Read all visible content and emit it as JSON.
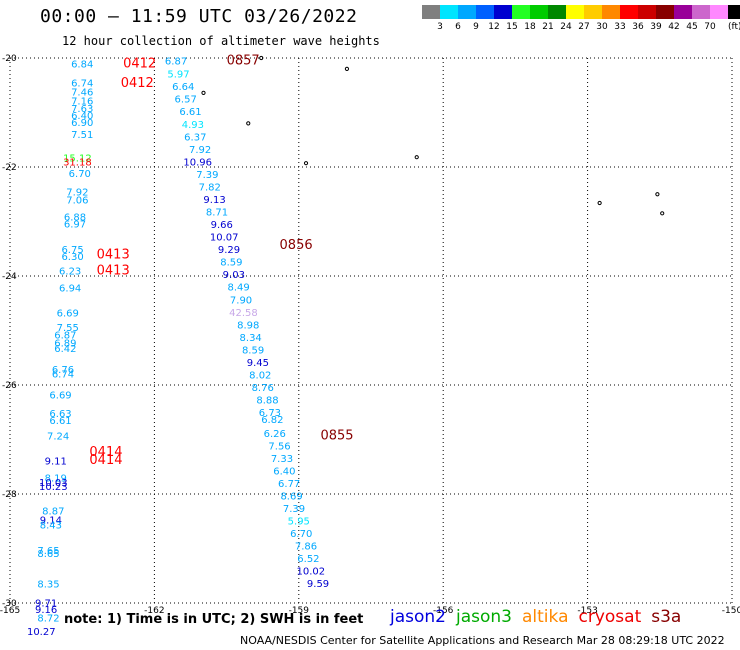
{
  "header": {
    "title": "00:00 – 11:59 UTC 03/26/2022",
    "subtitle": "12 hour collection of altimeter wave heights"
  },
  "colorbar": {
    "unit_label": "(ft)",
    "entries": [
      {
        "label": "",
        "color": "#7f7f7f"
      },
      {
        "label": "3",
        "color": "#00e5ff"
      },
      {
        "label": "6",
        "color": "#00a8ff"
      },
      {
        "label": "9",
        "color": "#0060ff"
      },
      {
        "label": "12",
        "color": "#0000d0"
      },
      {
        "label": "15",
        "color": "#22ff22"
      },
      {
        "label": "18",
        "color": "#00cc00"
      },
      {
        "label": "21",
        "color": "#008800"
      },
      {
        "label": "24",
        "color": "#ffff00"
      },
      {
        "label": "27",
        "color": "#ffcc00"
      },
      {
        "label": "30",
        "color": "#ff8800"
      },
      {
        "label": "33",
        "color": "#ff0000"
      },
      {
        "label": "36",
        "color": "#cc0000"
      },
      {
        "label": "39",
        "color": "#880000"
      },
      {
        "label": "42",
        "color": "#990099"
      },
      {
        "label": "45",
        "color": "#cc66cc"
      },
      {
        "label": "70",
        "color": "#ff88ff"
      },
      {
        "label": "",
        "color": "#000000"
      }
    ]
  },
  "map": {
    "lon_range": [
      -165,
      -150
    ],
    "lat_range": [
      -30,
      -20
    ],
    "x_ticks": [
      "-165",
      "-162",
      "-159",
      "-156",
      "-153",
      "-150"
    ],
    "y_ticks": [
      "-20",
      "-22",
      "-24",
      "-26",
      "-28",
      "-30"
    ],
    "islands": [
      {
        "lon": -159.78,
        "lat": -20.0
      },
      {
        "lon": -158.0,
        "lat": -20.2
      },
      {
        "lon": -160.98,
        "lat": -20.64
      },
      {
        "lon": -160.05,
        "lat": -21.2
      },
      {
        "lon": -158.85,
        "lat": -21.93
      },
      {
        "lon": -156.55,
        "lat": -21.82
      },
      {
        "lon": -152.75,
        "lat": -22.66
      },
      {
        "lon": -151.55,
        "lat": -22.5
      },
      {
        "lon": -151.45,
        "lat": -22.85
      }
    ]
  },
  "chart_data": {
    "type": "scatter",
    "passes": [
      {
        "time_label": "0412",
        "lon": -162.65,
        "lat": -20.17,
        "color": "#ff0000"
      },
      {
        "time_label": "0412",
        "lon": -162.7,
        "lat": -20.53,
        "color": "#ff0000"
      },
      {
        "time_label": "0857",
        "lon": -160.5,
        "lat": -20.12,
        "color": "#880000"
      },
      {
        "time_label": "0413",
        "lon": -163.2,
        "lat": -23.68,
        "color": "#ff0000"
      },
      {
        "time_label": "0413",
        "lon": -163.2,
        "lat": -23.97,
        "color": "#ff0000"
      },
      {
        "time_label": "0856",
        "lon": -159.4,
        "lat": -23.5,
        "color": "#880000"
      },
      {
        "time_label": "0855",
        "lon": -158.55,
        "lat": -27.0,
        "color": "#880000"
      },
      {
        "time_label": "0414",
        "lon": -163.35,
        "lat": -27.3,
        "color": "#ff0000"
      },
      {
        "time_label": "0414",
        "lon": -163.35,
        "lat": -27.45,
        "color": "#ff0000"
      }
    ],
    "wave_heights": [
      {
        "v": "6.84",
        "lon": -163.5,
        "lat": -20.17,
        "c": "#00a8ff"
      },
      {
        "v": "6.74",
        "lon": -163.5,
        "lat": -20.52,
        "c": "#00a8ff"
      },
      {
        "v": "7.46",
        "lon": -163.5,
        "lat": -20.69,
        "c": "#00a8ff"
      },
      {
        "v": "7.16",
        "lon": -163.5,
        "lat": -20.85,
        "c": "#00a8ff"
      },
      {
        "v": "7.63",
        "lon": -163.5,
        "lat": -20.99,
        "c": "#00a8ff"
      },
      {
        "v": "6.40",
        "lon": -163.5,
        "lat": -21.12,
        "c": "#00a8ff"
      },
      {
        "v": "6.90",
        "lon": -163.5,
        "lat": -21.25,
        "c": "#00a8ff"
      },
      {
        "v": "7.51",
        "lon": -163.5,
        "lat": -21.47,
        "c": "#00a8ff"
      },
      {
        "v": "15.12",
        "lon": -163.6,
        "lat": -21.9,
        "c": "#22ff22"
      },
      {
        "v": "31.18",
        "lon": -163.6,
        "lat": -21.97,
        "c": "#ff0000"
      },
      {
        "v": "6.70",
        "lon": -163.55,
        "lat": -22.18,
        "c": "#00a8ff"
      },
      {
        "v": "7.92",
        "lon": -163.6,
        "lat": -22.52,
        "c": "#00a8ff"
      },
      {
        "v": "7.06",
        "lon": -163.6,
        "lat": -22.67,
        "c": "#00a8ff"
      },
      {
        "v": "6.88",
        "lon": -163.65,
        "lat": -22.98,
        "c": "#00a8ff"
      },
      {
        "v": "6.97",
        "lon": -163.65,
        "lat": -23.11,
        "c": "#00a8ff"
      },
      {
        "v": "6.75",
        "lon": -163.7,
        "lat": -23.58,
        "c": "#00a8ff"
      },
      {
        "v": "6.30",
        "lon": -163.7,
        "lat": -23.71,
        "c": "#00a8ff"
      },
      {
        "v": "6.23",
        "lon": -163.75,
        "lat": -23.97,
        "c": "#00a8ff"
      },
      {
        "v": "6.94",
        "lon": -163.75,
        "lat": -24.28,
        "c": "#00a8ff"
      },
      {
        "v": "6.69",
        "lon": -163.8,
        "lat": -24.74,
        "c": "#00a8ff"
      },
      {
        "v": "7.55",
        "lon": -163.8,
        "lat": -25.01,
        "c": "#00a8ff"
      },
      {
        "v": "6.87",
        "lon": -163.85,
        "lat": -25.15,
        "c": "#00a8ff"
      },
      {
        "v": "6.89",
        "lon": -163.85,
        "lat": -25.29,
        "c": "#00a8ff"
      },
      {
        "v": "6.42",
        "lon": -163.85,
        "lat": -25.39,
        "c": "#00a8ff"
      },
      {
        "v": "6.76",
        "lon": -163.9,
        "lat": -25.78,
        "c": "#00a8ff"
      },
      {
        "v": "6.74",
        "lon": -163.9,
        "lat": -25.86,
        "c": "#00a8ff"
      },
      {
        "v": "6.69",
        "lon": -163.95,
        "lat": -26.25,
        "c": "#00a8ff"
      },
      {
        "v": "6.63",
        "lon": -163.95,
        "lat": -26.59,
        "c": "#00a8ff"
      },
      {
        "v": "6.61",
        "lon": -163.95,
        "lat": -26.72,
        "c": "#00a8ff"
      },
      {
        "v": "7.24",
        "lon": -164.0,
        "lat": -27.0,
        "c": "#00a8ff"
      },
      {
        "v": "9.11",
        "lon": -164.05,
        "lat": -27.46,
        "c": "#0000d0"
      },
      {
        "v": "8.19",
        "lon": -164.05,
        "lat": -27.77,
        "c": "#00a8ff"
      },
      {
        "v": "10.03",
        "lon": -164.1,
        "lat": -27.85,
        "c": "#0000d0"
      },
      {
        "v": "10.23",
        "lon": -164.1,
        "lat": -27.93,
        "c": "#0000d0"
      },
      {
        "v": "8.87",
        "lon": -164.1,
        "lat": -28.38,
        "c": "#00a8ff"
      },
      {
        "v": "9.14",
        "lon": -164.15,
        "lat": -28.54,
        "c": "#0000d0"
      },
      {
        "v": "8.43",
        "lon": -164.15,
        "lat": -28.63,
        "c": "#00a8ff"
      },
      {
        "v": "7.65",
        "lon": -164.2,
        "lat": -29.1,
        "c": "#00a8ff"
      },
      {
        "v": "8.65",
        "lon": -164.2,
        "lat": -29.16,
        "c": "#00a8ff"
      },
      {
        "v": "8.35",
        "lon": -164.2,
        "lat": -29.72,
        "c": "#00a8ff"
      },
      {
        "v": "9.71",
        "lon": -164.25,
        "lat": -30.06,
        "c": "#0000d0"
      },
      {
        "v": "9.16",
        "lon": -164.25,
        "lat": -30.18,
        "c": "#0000d0"
      },
      {
        "v": "8.72",
        "lon": -164.2,
        "lat": -30.34,
        "c": "#00a8ff"
      },
      {
        "v": "10.27",
        "lon": -164.35,
        "lat": -30.59,
        "c": "#0000d0"
      },
      {
        "v": "6.87",
        "lon": -161.55,
        "lat": -20.12,
        "c": "#00a8ff"
      },
      {
        "v": "5.97",
        "lon": -161.5,
        "lat": -20.36,
        "c": "#00e5ff"
      },
      {
        "v": "6.64",
        "lon": -161.4,
        "lat": -20.59,
        "c": "#00a8ff"
      },
      {
        "v": "6.57",
        "lon": -161.35,
        "lat": -20.82,
        "c": "#00a8ff"
      },
      {
        "v": "6.61",
        "lon": -161.25,
        "lat": -21.05,
        "c": "#00a8ff"
      },
      {
        "v": "4.93",
        "lon": -161.2,
        "lat": -21.28,
        "c": "#00e5ff"
      },
      {
        "v": "6.37",
        "lon": -161.15,
        "lat": -21.51,
        "c": "#00a8ff"
      },
      {
        "v": "7.92",
        "lon": -161.05,
        "lat": -21.74,
        "c": "#00a8ff"
      },
      {
        "v": "10.96",
        "lon": -161.1,
        "lat": -21.97,
        "c": "#0000d0"
      },
      {
        "v": "7.39",
        "lon": -160.9,
        "lat": -22.2,
        "c": "#00a8ff"
      },
      {
        "v": "7.82",
        "lon": -160.85,
        "lat": -22.43,
        "c": "#00a8ff"
      },
      {
        "v": "9.13",
        "lon": -160.75,
        "lat": -22.66,
        "c": "#0000d0"
      },
      {
        "v": "8.71",
        "lon": -160.7,
        "lat": -22.89,
        "c": "#00a8ff"
      },
      {
        "v": "9.66",
        "lon": -160.6,
        "lat": -23.12,
        "c": "#0000d0"
      },
      {
        "v": "10.07",
        "lon": -160.55,
        "lat": -23.35,
        "c": "#0000d0"
      },
      {
        "v": "9.29",
        "lon": -160.45,
        "lat": -23.58,
        "c": "#0000d0"
      },
      {
        "v": "8.59",
        "lon": -160.4,
        "lat": -23.81,
        "c": "#00a8ff"
      },
      {
        "v": "9.03",
        "lon": -160.35,
        "lat": -24.04,
        "c": "#0000d0"
      },
      {
        "v": "8.49",
        "lon": -160.25,
        "lat": -24.27,
        "c": "#00a8ff"
      },
      {
        "v": "7.90",
        "lon": -160.2,
        "lat": -24.5,
        "c": "#00a8ff"
      },
      {
        "v": "42.58",
        "lon": -160.15,
        "lat": -24.73,
        "c": "#c8a8e8"
      },
      {
        "v": "8.98",
        "lon": -160.05,
        "lat": -24.96,
        "c": "#00a8ff"
      },
      {
        "v": "8.34",
        "lon": -160.0,
        "lat": -25.19,
        "c": "#00a8ff"
      },
      {
        "v": "8.59",
        "lon": -159.95,
        "lat": -25.42,
        "c": "#00a8ff"
      },
      {
        "v": "9.45",
        "lon": -159.85,
        "lat": -25.65,
        "c": "#0000d0"
      },
      {
        "v": "8.02",
        "lon": -159.8,
        "lat": -25.88,
        "c": "#00a8ff"
      },
      {
        "v": "8.76",
        "lon": -159.75,
        "lat": -26.11,
        "c": "#00a8ff"
      },
      {
        "v": "8.88",
        "lon": -159.65,
        "lat": -26.34,
        "c": "#00a8ff"
      },
      {
        "v": "6.73",
        "lon": -159.6,
        "lat": -26.57,
        "c": "#00a8ff"
      },
      {
        "v": "6.82",
        "lon": -159.55,
        "lat": -26.7,
        "c": "#00a8ff"
      },
      {
        "v": "6.26",
        "lon": -159.5,
        "lat": -26.95,
        "c": "#00a8ff"
      },
      {
        "v": "7.56",
        "lon": -159.4,
        "lat": -27.18,
        "c": "#00a8ff"
      },
      {
        "v": "7.33",
        "lon": -159.35,
        "lat": -27.41,
        "c": "#00a8ff"
      },
      {
        "v": "6.40",
        "lon": -159.3,
        "lat": -27.64,
        "c": "#00a8ff"
      },
      {
        "v": "6.77",
        "lon": -159.2,
        "lat": -27.87,
        "c": "#00a8ff"
      },
      {
        "v": "8.69",
        "lon": -159.15,
        "lat": -28.1,
        "c": "#00a8ff"
      },
      {
        "v": "7.39",
        "lon": -159.1,
        "lat": -28.33,
        "c": "#00a8ff"
      },
      {
        "v": "5.95",
        "lon": -159.0,
        "lat": -28.56,
        "c": "#00e5ff"
      },
      {
        "v": "6.70",
        "lon": -158.95,
        "lat": -28.79,
        "c": "#00a8ff"
      },
      {
        "v": "7.86",
        "lon": -158.85,
        "lat": -29.02,
        "c": "#00a8ff"
      },
      {
        "v": "6.52",
        "lon": -158.8,
        "lat": -29.25,
        "c": "#00a8ff"
      },
      {
        "v": "10.02",
        "lon": -158.75,
        "lat": -29.48,
        "c": "#0000d0"
      },
      {
        "v": "9.59",
        "lon": -158.6,
        "lat": -29.71,
        "c": "#0000d0"
      }
    ]
  },
  "footer": {
    "note": "note:  1) Time is in UTC;  2) SWH is in feet",
    "credit": "NOAA/NESDIS Center for Satellite Applications and Research     Mar 28 08:29:18 UTC 2022",
    "satellites": [
      {
        "name": "jason2",
        "color": "#0000dd"
      },
      {
        "name": "jason3",
        "color": "#00aa00"
      },
      {
        "name": "altika",
        "color": "#ff8800"
      },
      {
        "name": "cryosat",
        "color": "#ee0000"
      },
      {
        "name": "s3a",
        "color": "#880000"
      }
    ]
  }
}
